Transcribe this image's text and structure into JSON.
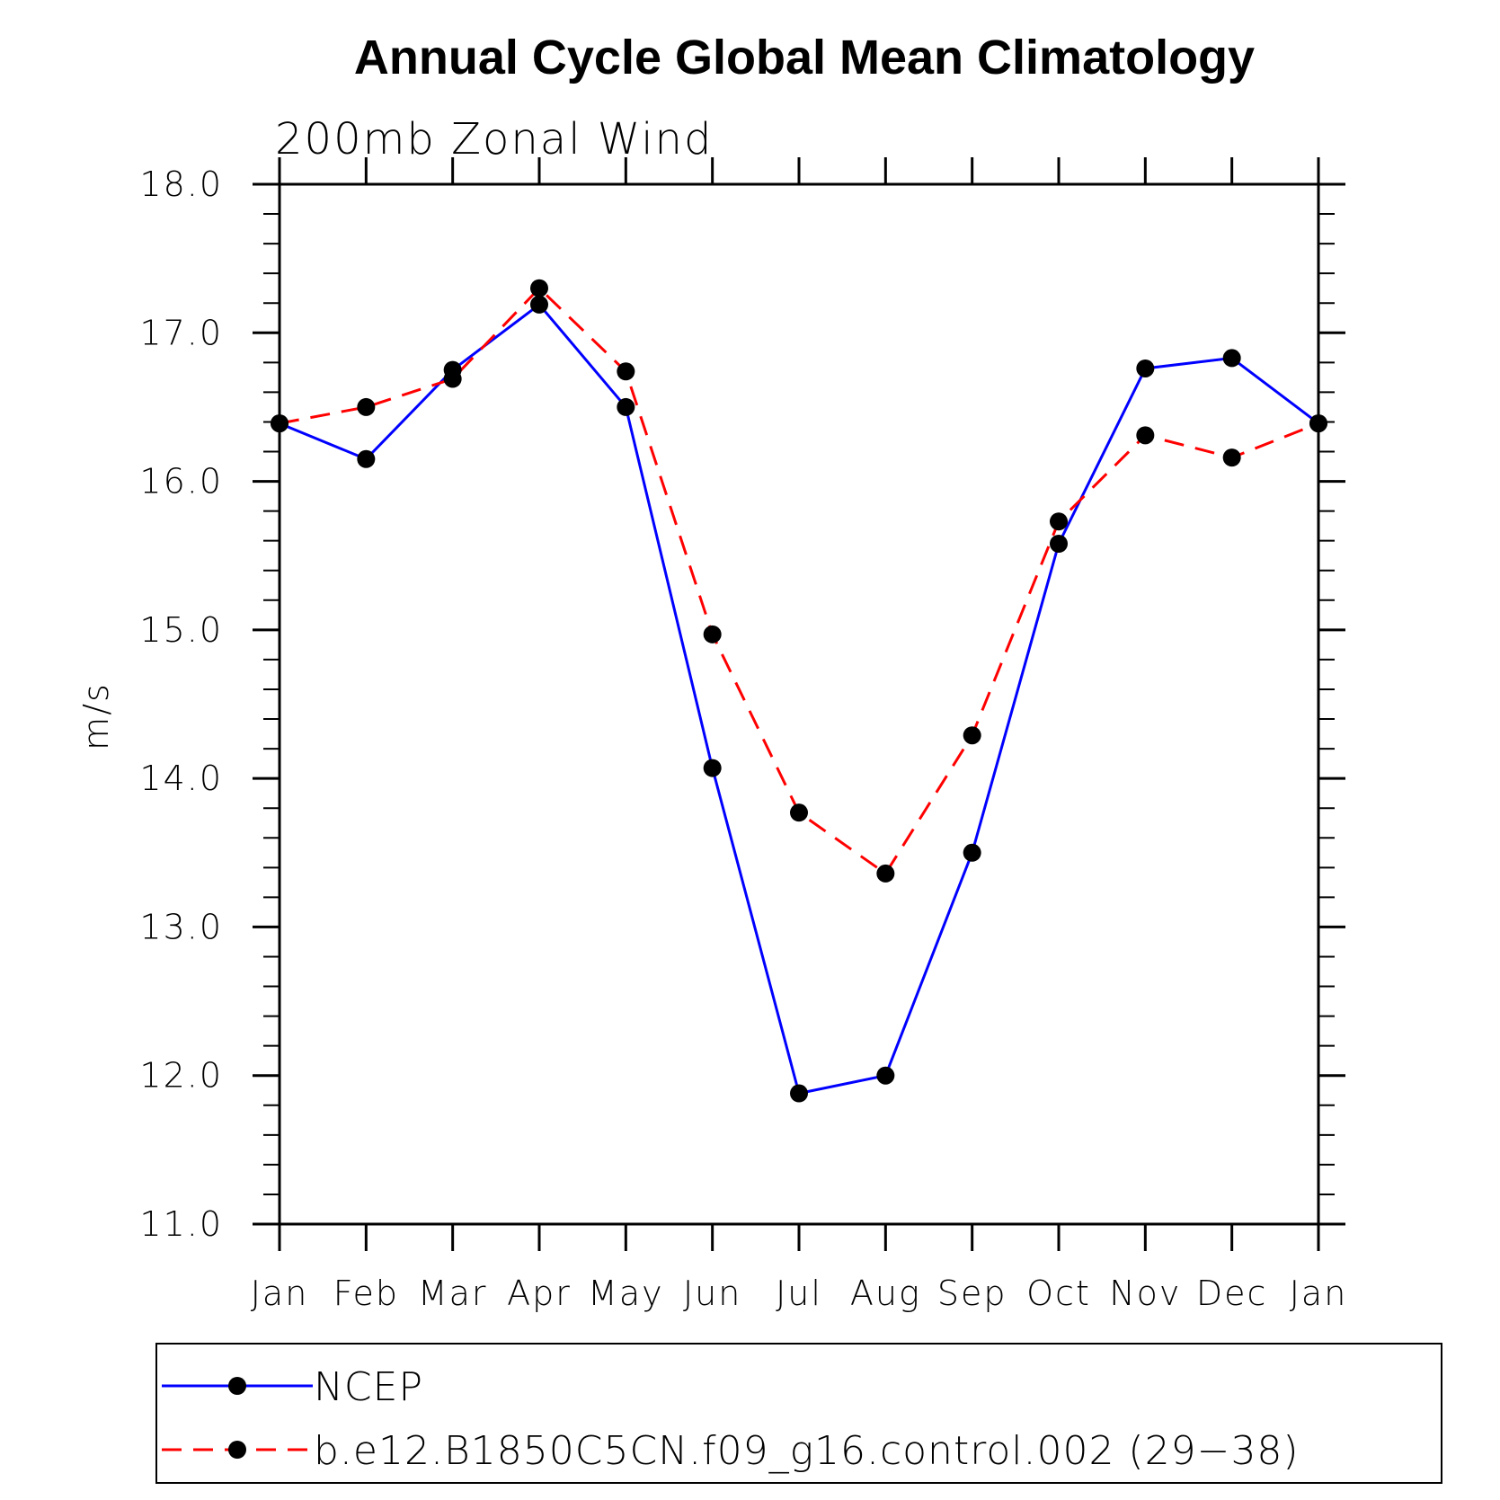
{
  "chart_data": {
    "type": "line",
    "title": "Annual Cycle Global Mean Climatology",
    "subtitle": "200mb Zonal Wind",
    "xlabel": "",
    "ylabel": "m/s",
    "categories": [
      "Jan",
      "Feb",
      "Mar",
      "Apr",
      "May",
      "Jun",
      "Jul",
      "Aug",
      "Sep",
      "Oct",
      "Nov",
      "Dec",
      "Jan"
    ],
    "ylim": [
      11.0,
      18.0
    ],
    "yticks": [
      "11.0",
      "12.0",
      "13.0",
      "14.0",
      "15.0",
      "16.0",
      "17.0",
      "18.0"
    ],
    "grid": false,
    "legend_position": "bottom",
    "series": [
      {
        "name": "NCEP",
        "color": "#0000ff",
        "dash": "solid",
        "marker": "filled-circle",
        "values": [
          16.39,
          16.15,
          16.75,
          17.19,
          16.5,
          14.07,
          11.88,
          12.0,
          13.5,
          15.58,
          16.76,
          16.83,
          16.39
        ]
      },
      {
        "name": "b.e12.B1850C5CN.f09_g16.control.002 (29−38)",
        "color": "#ff0000",
        "dash": "dashed",
        "marker": "filled-circle",
        "values": [
          16.39,
          16.5,
          16.69,
          17.3,
          16.74,
          14.97,
          13.77,
          13.36,
          14.29,
          15.73,
          16.31,
          16.16,
          16.39
        ]
      }
    ]
  }
}
